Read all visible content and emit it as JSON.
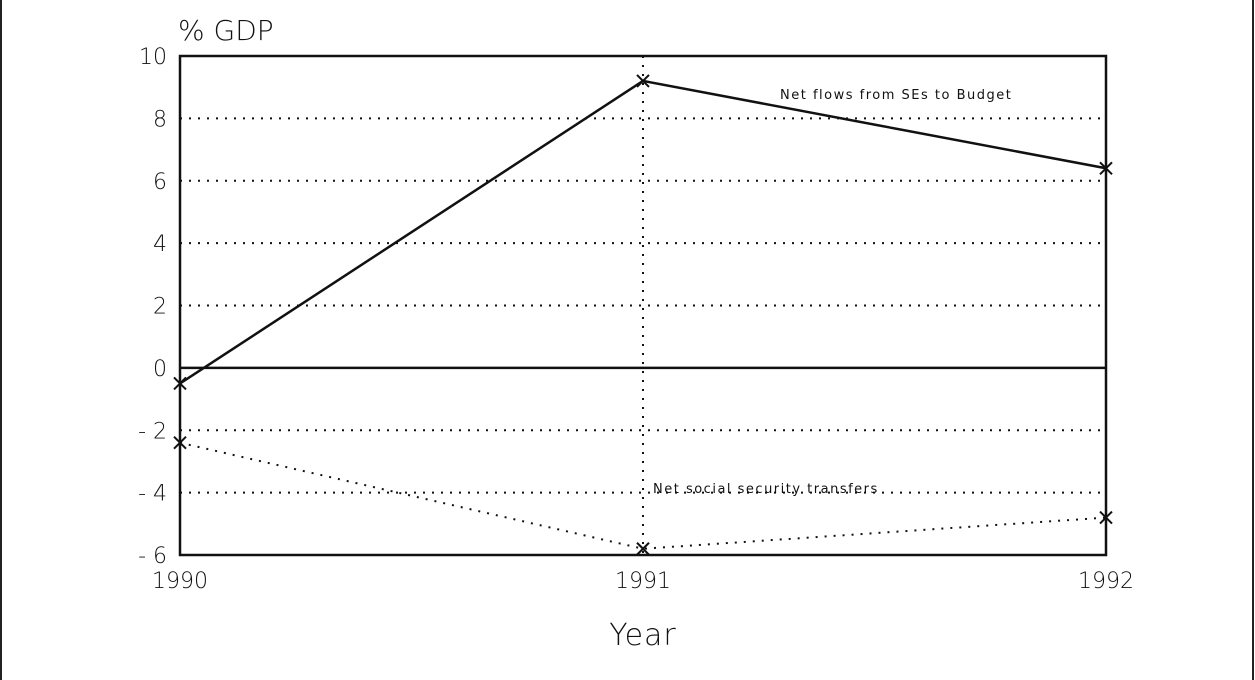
{
  "chart_data": {
    "type": "line",
    "ylabel": "% GDP",
    "xlabel": "Year",
    "x": [
      1990,
      1991,
      1992
    ],
    "x_tick_labels": [
      "1990",
      "1991",
      "1992"
    ],
    "ylim": [
      -6,
      10
    ],
    "y_ticks": [
      10,
      8,
      6,
      4,
      2,
      0,
      -2,
      -4,
      -6
    ],
    "y_tick_labels": [
      "10",
      "8",
      "6",
      "4",
      "2",
      "0",
      "- 2",
      "- 4",
      "- 6"
    ],
    "grid": true,
    "series": [
      {
        "name": "Net flows from SEs to Budget",
        "values": [
          -0.5,
          9.2,
          6.4
        ],
        "line_style": "solid",
        "marker": "x"
      },
      {
        "name": "Net social security transfers",
        "values": [
          -2.4,
          -5.8,
          -4.8
        ],
        "line_style": "dotted",
        "marker": "x"
      }
    ]
  }
}
